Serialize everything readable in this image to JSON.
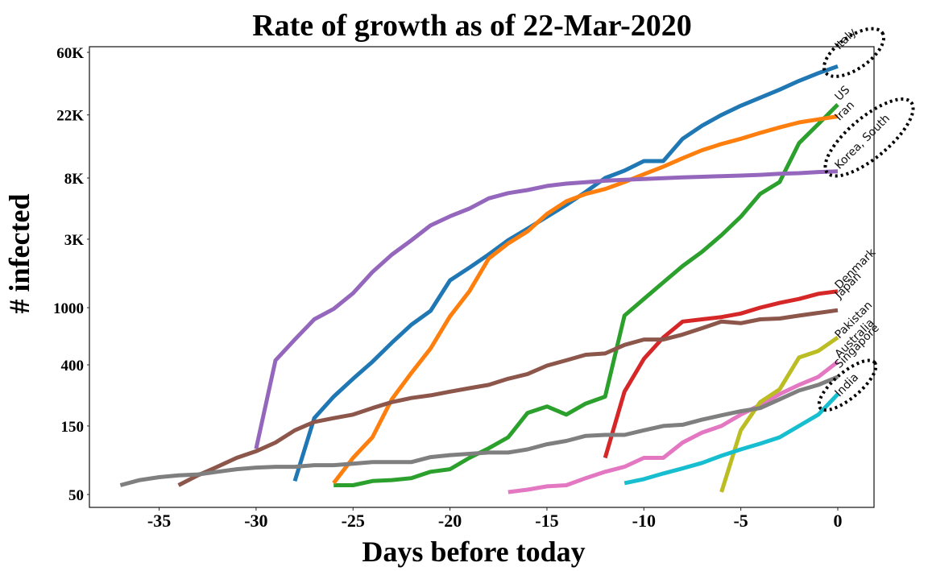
{
  "chart_data": {
    "type": "line",
    "title": "Rate of growth as of 22-Mar-2020",
    "xlabel": "Days before today",
    "ylabel": "# infected",
    "xlim": [
      -38.5,
      2
    ],
    "x_ticks": [
      {
        "value": -35,
        "label": "-35"
      },
      {
        "value": -30,
        "label": "-30"
      },
      {
        "value": -25,
        "label": "-25"
      },
      {
        "value": -20,
        "label": "-20"
      },
      {
        "value": -15,
        "label": "-15"
      },
      {
        "value": -10,
        "label": "-10"
      },
      {
        "value": -5,
        "label": "-5"
      },
      {
        "value": 0,
        "label": "0"
      }
    ],
    "y_ticks": [
      {
        "value": 50,
        "label": "50"
      },
      {
        "value": 150,
        "label": "150"
      },
      {
        "value": 400,
        "label": "400"
      },
      {
        "value": 1000,
        "label": "1000"
      },
      {
        "value": 3000,
        "label": "3K"
      },
      {
        "value": 8000,
        "label": "8K"
      },
      {
        "value": 22000,
        "label": "22K"
      },
      {
        "value": 60000,
        "label": "60K"
      }
    ],
    "grid": false,
    "series": [
      {
        "name": "Italy",
        "color": "#1f77b4",
        "label_offset": [
          2,
          -20
        ],
        "points": [
          [
            -28,
            62
          ],
          [
            -27,
            170
          ],
          [
            -26,
            240
          ],
          [
            -25,
            320
          ],
          [
            -24,
            420
          ],
          [
            -23,
            570
          ],
          [
            -22,
            760
          ],
          [
            -21,
            950
          ],
          [
            -20,
            1550
          ],
          [
            -19,
            1900
          ],
          [
            -18,
            2350
          ],
          [
            -17,
            2950
          ],
          [
            -16,
            3550
          ],
          [
            -15,
            4300
          ],
          [
            -14,
            5200
          ],
          [
            -13,
            6400
          ],
          [
            -12,
            8000
          ],
          [
            -11,
            9000
          ],
          [
            -10,
            10500
          ],
          [
            -9,
            10500
          ],
          [
            -8,
            15000
          ],
          [
            -7,
            18500
          ],
          [
            -6,
            22000
          ],
          [
            -5,
            25500
          ],
          [
            -4,
            29000
          ],
          [
            -3,
            33000
          ],
          [
            -2,
            38000
          ],
          [
            -1,
            43000
          ],
          [
            0,
            48000
          ]
        ]
      },
      {
        "name": "US",
        "color": "#2ca02c",
        "label_offset": [
          2,
          -4
        ],
        "points": [
          [
            -26,
            58
          ],
          [
            -25,
            58
          ],
          [
            -24,
            62
          ],
          [
            -23,
            63
          ],
          [
            -22,
            65
          ],
          [
            -21,
            72
          ],
          [
            -20,
            75
          ],
          [
            -19,
            90
          ],
          [
            -18,
            105
          ],
          [
            -17,
            125
          ],
          [
            -16,
            185
          ],
          [
            -15,
            205
          ],
          [
            -14,
            180
          ],
          [
            -13,
            215
          ],
          [
            -12,
            240
          ],
          [
            -11,
            880
          ],
          [
            -10,
            1150
          ],
          [
            -9,
            1500
          ],
          [
            -8,
            1950
          ],
          [
            -7,
            2450
          ],
          [
            -6,
            3200
          ],
          [
            -5,
            4300
          ],
          [
            -4,
            6200
          ],
          [
            -3,
            7500
          ],
          [
            -2,
            14000
          ],
          [
            -1,
            19000
          ],
          [
            0,
            26000
          ]
        ]
      },
      {
        "name": "Iran",
        "color": "#ff7f0e",
        "label_offset": [
          2,
          6
        ],
        "points": [
          [
            -26,
            60
          ],
          [
            -25,
            90
          ],
          [
            -24,
            125
          ],
          [
            -23,
            230
          ],
          [
            -22,
            350
          ],
          [
            -21,
            520
          ],
          [
            -20,
            870
          ],
          [
            -19,
            1300
          ],
          [
            -18,
            2200
          ],
          [
            -17,
            2800
          ],
          [
            -16,
            3400
          ],
          [
            -15,
            4500
          ],
          [
            -14,
            5500
          ],
          [
            -13,
            6200
          ],
          [
            -12,
            6700
          ],
          [
            -11,
            7500
          ],
          [
            -10,
            8500
          ],
          [
            -9,
            9600
          ],
          [
            -8,
            11000
          ],
          [
            -7,
            12500
          ],
          [
            -6,
            13800
          ],
          [
            -5,
            15000
          ],
          [
            -4,
            16500
          ],
          [
            -3,
            18000
          ],
          [
            -2,
            19500
          ],
          [
            -1,
            20500
          ],
          [
            0,
            21500
          ]
        ]
      },
      {
        "name": "Korea, South",
        "color": "#9467bd",
        "label_offset": [
          2,
          -2
        ],
        "points": [
          [
            -30,
            104
          ],
          [
            -29,
            430
          ],
          [
            -28,
            600
          ],
          [
            -27,
            830
          ],
          [
            -26,
            980
          ],
          [
            -25,
            1260
          ],
          [
            -24,
            1770
          ],
          [
            -23,
            2340
          ],
          [
            -22,
            2940
          ],
          [
            -21,
            3740
          ],
          [
            -20,
            4330
          ],
          [
            -19,
            4900
          ],
          [
            -18,
            5770
          ],
          [
            -17,
            6280
          ],
          [
            -16,
            6590
          ],
          [
            -15,
            7040
          ],
          [
            -14,
            7310
          ],
          [
            -13,
            7480
          ],
          [
            -12,
            7660
          ],
          [
            -11,
            7780
          ],
          [
            -10,
            7870
          ],
          [
            -9,
            7980
          ],
          [
            -8,
            8090
          ],
          [
            -7,
            8160
          ],
          [
            -6,
            8240
          ],
          [
            -5,
            8320
          ],
          [
            -4,
            8410
          ],
          [
            -3,
            8560
          ],
          [
            -2,
            8650
          ],
          [
            -1,
            8800
          ],
          [
            0,
            8900
          ]
        ]
      },
      {
        "name": "Denmark",
        "color": "#d62728",
        "label_offset": [
          2,
          -2
        ],
        "points": [
          [
            -12,
            90
          ],
          [
            -11,
            260
          ],
          [
            -10,
            440
          ],
          [
            -9,
            620
          ],
          [
            -8,
            800
          ],
          [
            -7,
            830
          ],
          [
            -6,
            860
          ],
          [
            -5,
            910
          ],
          [
            -4,
            1000
          ],
          [
            -3,
            1080
          ],
          [
            -2,
            1150
          ],
          [
            -1,
            1250
          ],
          [
            0,
            1300
          ]
        ]
      },
      {
        "name": "Japan",
        "color": "#8c564b",
        "label_offset": [
          2,
          -14
        ],
        "points": [
          [
            -34,
            58
          ],
          [
            -33,
            68
          ],
          [
            -32,
            78
          ],
          [
            -31,
            90
          ],
          [
            -30,
            100
          ],
          [
            -29,
            115
          ],
          [
            -28,
            140
          ],
          [
            -27,
            160
          ],
          [
            -26,
            170
          ],
          [
            -25,
            180
          ],
          [
            -24,
            200
          ],
          [
            -23,
            220
          ],
          [
            -22,
            235
          ],
          [
            -21,
            245
          ],
          [
            -20,
            260
          ],
          [
            -19,
            275
          ],
          [
            -18,
            290
          ],
          [
            -17,
            320
          ],
          [
            -16,
            345
          ],
          [
            -15,
            395
          ],
          [
            -14,
            430
          ],
          [
            -13,
            470
          ],
          [
            -12,
            480
          ],
          [
            -11,
            550
          ],
          [
            -10,
            600
          ],
          [
            -9,
            600
          ],
          [
            -8,
            650
          ],
          [
            -7,
            720
          ],
          [
            -6,
            800
          ],
          [
            -5,
            780
          ],
          [
            -4,
            830
          ],
          [
            -3,
            840
          ],
          [
            -2,
            880
          ],
          [
            -1,
            920
          ],
          [
            0,
            960
          ]
        ]
      },
      {
        "name": "Australia",
        "color": "#e377c2",
        "label_offset": [
          2,
          -4
        ],
        "points": [
          [
            -17,
            52
          ],
          [
            -16,
            54
          ],
          [
            -15,
            57
          ],
          [
            -14,
            58
          ],
          [
            -13,
            65
          ],
          [
            -12,
            72
          ],
          [
            -11,
            78
          ],
          [
            -10,
            90
          ],
          [
            -9,
            90
          ],
          [
            -8,
            115
          ],
          [
            -7,
            135
          ],
          [
            -6,
            150
          ],
          [
            -5,
            180
          ],
          [
            -4,
            210
          ],
          [
            -3,
            250
          ],
          [
            -2,
            290
          ],
          [
            -1,
            330
          ],
          [
            0,
            420
          ]
        ]
      },
      {
        "name": "Pakistan",
        "color": "#bcbd22",
        "label_offset": [
          2,
          2
        ],
        "points": [
          [
            -6,
            52
          ],
          [
            -5,
            140
          ],
          [
            -4,
            220
          ],
          [
            -3,
            270
          ],
          [
            -2,
            450
          ],
          [
            -1,
            500
          ],
          [
            0,
            620
          ]
        ]
      },
      {
        "name": "Singapore",
        "color": "#7f7f7f",
        "label_offset": [
          2,
          -10
        ],
        "points": [
          [
            -37,
            58
          ],
          [
            -36,
            63
          ],
          [
            -35,
            66
          ],
          [
            -34,
            68
          ],
          [
            -33,
            69
          ],
          [
            -32,
            72
          ],
          [
            -31,
            75
          ],
          [
            -30,
            77
          ],
          [
            -29,
            78
          ],
          [
            -28,
            78
          ],
          [
            -27,
            80
          ],
          [
            -26,
            80
          ],
          [
            -25,
            82
          ],
          [
            -24,
            84
          ],
          [
            -23,
            84
          ],
          [
            -22,
            84
          ],
          [
            -21,
            91
          ],
          [
            -20,
            94
          ],
          [
            -19,
            96
          ],
          [
            -18,
            98
          ],
          [
            -17,
            98
          ],
          [
            -16,
            103
          ],
          [
            -15,
            112
          ],
          [
            -14,
            118
          ],
          [
            -13,
            128
          ],
          [
            -12,
            130
          ],
          [
            -11,
            130
          ],
          [
            -10,
            140
          ],
          [
            -9,
            150
          ],
          [
            -8,
            153
          ],
          [
            -7,
            166
          ],
          [
            -6,
            178
          ],
          [
            -5,
            190
          ],
          [
            -4,
            200
          ],
          [
            -3,
            230
          ],
          [
            -2,
            265
          ],
          [
            -1,
            290
          ],
          [
            0,
            330
          ]
        ]
      },
      {
        "name": "India",
        "color": "#17becf",
        "label_offset": [
          2,
          4
        ],
        "points": [
          [
            -11,
            60
          ],
          [
            -10,
            64
          ],
          [
            -9,
            70
          ],
          [
            -8,
            76
          ],
          [
            -7,
            83
          ],
          [
            -6,
            93
          ],
          [
            -5,
            103
          ],
          [
            -4,
            113
          ],
          [
            -3,
            125
          ],
          [
            -2,
            150
          ],
          [
            -1,
            180
          ],
          [
            0,
            250
          ]
        ]
      }
    ],
    "highlighted": [
      "Italy",
      "Korea, South",
      "India"
    ]
  }
}
